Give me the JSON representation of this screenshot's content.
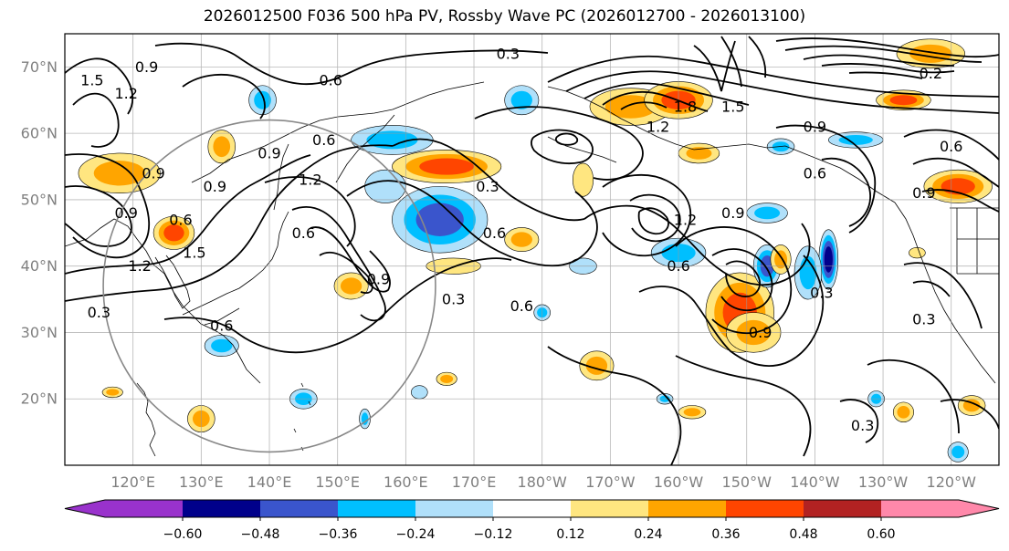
{
  "title": "2026012500 F036 500 hPa PV, Rossby Wave PC (2026012700 - 2026013100)",
  "map": {
    "lon_range_deg": [
      110,
      247
    ],
    "lat_range_deg": [
      10,
      75
    ],
    "lat_ticks": [
      {
        "value": 70,
        "label": "70°N"
      },
      {
        "value": 60,
        "label": "60°N"
      },
      {
        "value": 50,
        "label": "50°N"
      },
      {
        "value": 40,
        "label": "40°N"
      },
      {
        "value": 30,
        "label": "30°N"
      },
      {
        "value": 20,
        "label": "20°N"
      }
    ],
    "lon_ticks": [
      {
        "value": 120,
        "label": "120°E"
      },
      {
        "value": 130,
        "label": "130°E"
      },
      {
        "value": 140,
        "label": "140°E"
      },
      {
        "value": 150,
        "label": "150°E"
      },
      {
        "value": 160,
        "label": "160°E"
      },
      {
        "value": 170,
        "label": "170°E"
      },
      {
        "value": 180,
        "label": "180°W"
      },
      {
        "value": 190,
        "label": "170°W"
      },
      {
        "value": 200,
        "label": "160°W"
      },
      {
        "value": 210,
        "label": "150°W"
      },
      {
        "value": 220,
        "label": "140°W"
      },
      {
        "value": 230,
        "label": "130°W"
      },
      {
        "value": 240,
        "label": "120°W"
      }
    ],
    "contour_labels": [
      {
        "text": "0.3",
        "lon": 175,
        "lat": 72
      },
      {
        "text": "0.6",
        "lon": 149,
        "lat": 68
      },
      {
        "text": "1.5",
        "lon": 114,
        "lat": 68
      },
      {
        "text": "1.2",
        "lon": 119,
        "lat": 66
      },
      {
        "text": "0.9",
        "lon": 122,
        "lat": 70
      },
      {
        "text": "0.6",
        "lon": 148,
        "lat": 59
      },
      {
        "text": "0.9",
        "lon": 140,
        "lat": 57
      },
      {
        "text": "0.9",
        "lon": 123,
        "lat": 54
      },
      {
        "text": "0.9",
        "lon": 132,
        "lat": 52
      },
      {
        "text": "1.2",
        "lon": 146,
        "lat": 53
      },
      {
        "text": "0.3",
        "lon": 172,
        "lat": 52
      },
      {
        "text": "0.9",
        "lon": 119,
        "lat": 48
      },
      {
        "text": "0.6",
        "lon": 127,
        "lat": 47
      },
      {
        "text": "0.6",
        "lon": 145,
        "lat": 45
      },
      {
        "text": "0.6",
        "lon": 173,
        "lat": 45
      },
      {
        "text": "1.5",
        "lon": 129,
        "lat": 42
      },
      {
        "text": "1.2",
        "lon": 121,
        "lat": 40
      },
      {
        "text": "0.9",
        "lon": 156,
        "lat": 38
      },
      {
        "text": "0.3",
        "lon": 167,
        "lat": 35
      },
      {
        "text": "0.6",
        "lon": 177,
        "lat": 34
      },
      {
        "text": "0.3",
        "lon": 115,
        "lat": 33
      },
      {
        "text": "0.6",
        "lon": 133,
        "lat": 31
      },
      {
        "text": "1.8",
        "lon": 201,
        "lat": 64
      },
      {
        "text": "1.5",
        "lon": 208,
        "lat": 64
      },
      {
        "text": "1.2",
        "lon": 197,
        "lat": 61
      },
      {
        "text": "0.9",
        "lon": 220,
        "lat": 61
      },
      {
        "text": "0.6",
        "lon": 220,
        "lat": 54
      },
      {
        "text": "1.2",
        "lon": 201,
        "lat": 47
      },
      {
        "text": "0.9",
        "lon": 208,
        "lat": 48
      },
      {
        "text": "0.6",
        "lon": 200,
        "lat": 40
      },
      {
        "text": "0.9",
        "lon": 212,
        "lat": 30
      },
      {
        "text": "0.3",
        "lon": 221,
        "lat": 36
      },
      {
        "text": "0.3",
        "lon": 236,
        "lat": 32
      },
      {
        "text": "0.3",
        "lon": 227,
        "lat": 16
      },
      {
        "text": "0.6",
        "lon": 240,
        "lat": 58
      },
      {
        "text": "0.2",
        "lon": 237,
        "lat": 69
      },
      {
        "text": "0.9",
        "lon": 236,
        "lat": 51
      }
    ],
    "pv_anomaly_blobs": [
      {
        "level": -0.36,
        "lon": 139,
        "lat": 65,
        "rx": 2.0,
        "ry": 2.2
      },
      {
        "level": 0.36,
        "lon": 133,
        "lat": 58,
        "rx": 2.0,
        "ry": 2.5
      },
      {
        "level": 0.36,
        "lon": 118,
        "lat": 54,
        "rx": 6,
        "ry": 3
      },
      {
        "level": 0.48,
        "lon": 126,
        "lat": 45,
        "rx": 3,
        "ry": 2.5
      },
      {
        "level": -0.36,
        "lon": 158,
        "lat": 59,
        "rx": 6,
        "ry": 2.2
      },
      {
        "level": 0.48,
        "lon": 166,
        "lat": 55,
        "rx": 8,
        "ry": 2.5
      },
      {
        "level": -0.48,
        "lon": 165,
        "lat": 47,
        "rx": 7,
        "ry": 5
      },
      {
        "level": -0.24,
        "lon": 157,
        "lat": 52,
        "rx": 3,
        "ry": 2.5
      },
      {
        "level": 0.36,
        "lon": 177,
        "lat": 44,
        "rx": 2.5,
        "ry": 1.8
      },
      {
        "level": 0.36,
        "lon": 152,
        "lat": 37,
        "rx": 2.5,
        "ry": 2.0
      },
      {
        "level": 0.24,
        "lon": 167,
        "lat": 40,
        "rx": 4,
        "ry": 1.2
      },
      {
        "level": -0.24,
        "lon": 186,
        "lat": 40,
        "rx": 2.0,
        "ry": 1.2
      },
      {
        "level": -0.36,
        "lon": 177,
        "lat": 65,
        "rx": 2.5,
        "ry": 2.2
      },
      {
        "level": 0.36,
        "lon": 193,
        "lat": 64,
        "rx": 6,
        "ry": 2.8
      },
      {
        "level": 0.48,
        "lon": 200,
        "lat": 65,
        "rx": 5,
        "ry": 2.8
      },
      {
        "level": 0.24,
        "lon": 186,
        "lat": 53,
        "rx": 1.5,
        "ry": 2.5
      },
      {
        "level": 0.36,
        "lon": 203,
        "lat": 57,
        "rx": 3,
        "ry": 1.5
      },
      {
        "level": -0.36,
        "lon": 215,
        "lat": 58,
        "rx": 2.0,
        "ry": 1.2
      },
      {
        "level": -0.36,
        "lon": 213,
        "lat": 48,
        "rx": 3,
        "ry": 1.5
      },
      {
        "level": -0.36,
        "lon": 200,
        "lat": 42,
        "rx": 4,
        "ry": 2.2
      },
      {
        "level": 0.48,
        "lon": 209,
        "lat": 33,
        "rx": 5,
        "ry": 6
      },
      {
        "level": 0.36,
        "lon": 211,
        "lat": 30,
        "rx": 4,
        "ry": 3
      },
      {
        "level": -0.48,
        "lon": 213,
        "lat": 40,
        "rx": 2.0,
        "ry": 3.2
      },
      {
        "level": 0.36,
        "lon": 215,
        "lat": 41,
        "rx": 1.5,
        "ry": 2.2
      },
      {
        "level": -0.6,
        "lon": 222,
        "lat": 41,
        "rx": 1.4,
        "ry": 4.5
      },
      {
        "level": -0.36,
        "lon": 219,
        "lat": 39,
        "rx": 2.0,
        "ry": 4.0
      },
      {
        "level": 0.36,
        "lon": 188,
        "lat": 25,
        "rx": 2.5,
        "ry": 2.2
      },
      {
        "level": -0.36,
        "lon": 226,
        "lat": 59,
        "rx": 4,
        "ry": 1.2
      },
      {
        "level": 0.48,
        "lon": 241,
        "lat": 52,
        "rx": 5,
        "ry": 2.5
      },
      {
        "level": 0.48,
        "lon": 233,
        "lat": 65,
        "rx": 4,
        "ry": 1.5
      },
      {
        "level": 0.36,
        "lon": 237,
        "lat": 72,
        "rx": 5,
        "ry": 2.2
      },
      {
        "level": -0.36,
        "lon": 133,
        "lat": 28,
        "rx": 2.5,
        "ry": 1.6
      },
      {
        "level": -0.36,
        "lon": 145,
        "lat": 20,
        "rx": 2.0,
        "ry": 1.5
      },
      {
        "level": 0.36,
        "lon": 130,
        "lat": 17,
        "rx": 2.0,
        "ry": 2.0
      },
      {
        "level": 0.36,
        "lon": 166,
        "lat": 23,
        "rx": 1.5,
        "ry": 1.0
      },
      {
        "level": -0.36,
        "lon": 180,
        "lat": 33,
        "rx": 1.2,
        "ry": 1.2
      },
      {
        "level": -0.36,
        "lon": 154,
        "lat": 17,
        "rx": 0.8,
        "ry": 1.5
      },
      {
        "level": 0.36,
        "lon": 233,
        "lat": 18,
        "rx": 1.5,
        "ry": 1.5
      },
      {
        "level": 0.36,
        "lon": 243,
        "lat": 19,
        "rx": 2.0,
        "ry": 1.5
      },
      {
        "level": -0.36,
        "lon": 229,
        "lat": 20,
        "rx": 1.2,
        "ry": 1.2
      },
      {
        "level": -0.36,
        "lon": 241,
        "lat": 12,
        "rx": 1.5,
        "ry": 1.5
      },
      {
        "level": 0.36,
        "lon": 117,
        "lat": 21,
        "rx": 1.5,
        "ry": 0.8
      },
      {
        "level": -0.24,
        "lon": 162,
        "lat": 21,
        "rx": 1.2,
        "ry": 1.0
      },
      {
        "level": 0.36,
        "lon": 202,
        "lat": 18,
        "rx": 2.0,
        "ry": 1.0
      },
      {
        "level": -0.36,
        "lon": 198,
        "lat": 20,
        "rx": 1.2,
        "ry": 0.8
      },
      {
        "level": 0.24,
        "lon": 235,
        "lat": 42,
        "rx": 1.2,
        "ry": 0.8
      }
    ],
    "region_circle": {
      "center_lon": 140,
      "center_lat": 37,
      "radius_deg": 25
    }
  },
  "colorbar": {
    "ticks": [
      "−0.60",
      "−0.48",
      "−0.36",
      "−0.24",
      "−0.12",
      "0.12",
      "0.24",
      "0.36",
      "0.48",
      "0.60"
    ],
    "under_color": "#9932cc",
    "over_color": "#ff88aa",
    "colors": [
      "#00008b",
      "#3a55cc",
      "#00bfff",
      "#b0e0fa",
      "#ffffff",
      "#ffe680",
      "#ffa500",
      "#ff4500",
      "#b22222"
    ]
  },
  "level_colors": {
    "-0.6": "#00008b",
    "-0.48": "#3a55cc",
    "-0.36": "#00bfff",
    "-0.24": "#b0e0fa",
    "0.24": "#ffe680",
    "0.36": "#ffa500",
    "0.48": "#ff4500",
    "0.6": "#b22222"
  }
}
